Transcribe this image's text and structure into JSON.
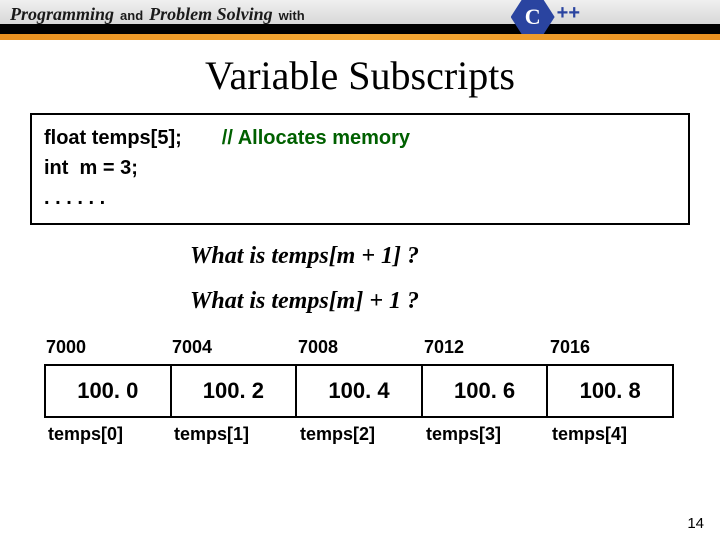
{
  "header": {
    "word1": "Programming",
    "conj": "and",
    "word2": "Problem Solving",
    "with": "with",
    "logo_letter": "C",
    "plusplus": "++"
  },
  "title": "Variable Subscripts",
  "code": {
    "line1_decl": "float temps[5];",
    "line1_comment": "// Allocates memory",
    "line2": "int  m = 3;",
    "line3": ". . . . . ."
  },
  "questions": {
    "q1": "What is  temps[m + 1] ?",
    "q2": "What is  temps[m] + 1 ?"
  },
  "array": {
    "addresses": [
      "7000",
      "7004",
      "7008",
      "7012",
      "7016"
    ],
    "values": [
      "100. 0",
      "100. 2",
      "100. 4",
      "100. 6",
      "100. 8"
    ],
    "labels": [
      "temps[0]",
      "temps[1]",
      "temps[2]",
      "temps[3]",
      "temps[4]"
    ]
  },
  "page_number": "14"
}
